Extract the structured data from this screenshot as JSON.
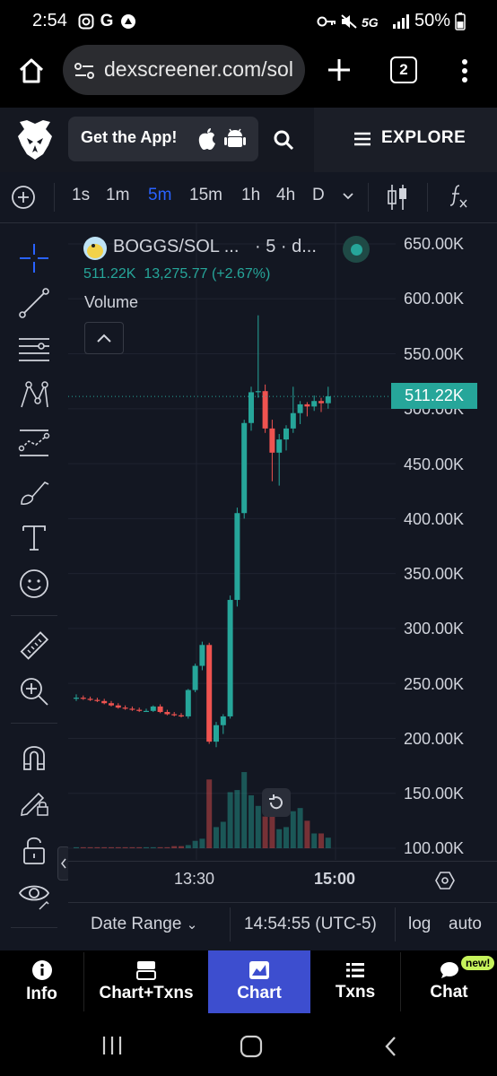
{
  "status_bar": {
    "time": "2:54",
    "battery": "50%",
    "network": "5G"
  },
  "browser": {
    "url": "dexscreener.com/sol",
    "tab_count": "2"
  },
  "site_header": {
    "get_app_label": "Get the App!",
    "explore_label": "EXPLORE"
  },
  "toolbar": {
    "timeframes": [
      "1s",
      "1m",
      "5m",
      "15m",
      "1h",
      "4h",
      "D"
    ],
    "active_timeframe": "5m"
  },
  "legend": {
    "pair": "BOGGS/SOL ...",
    "interval": "· 5 · d...",
    "price": "511.22K",
    "change": "13,275.77 (+2.67%)",
    "volume_label": "Volume"
  },
  "chart_data": {
    "type": "candlestick",
    "y_ticks": [
      "650.00K",
      "600.00K",
      "550.00K",
      "500.00K",
      "450.00K",
      "400.00K",
      "350.00K",
      "300.00K",
      "250.00K",
      "200.00K",
      "150.00K",
      "100.00K"
    ],
    "ylim": [
      100000,
      650000
    ],
    "x_ticks": [
      "13:30",
      "15:00"
    ],
    "last_price_label": "511.22K",
    "colors": {
      "up": "#26a69a",
      "down": "#ef5350"
    },
    "candles": [
      {
        "o": 237000,
        "h": 240000,
        "l": 234000,
        "c": 237000
      },
      {
        "o": 237000,
        "h": 239000,
        "l": 235000,
        "c": 236000
      },
      {
        "o": 236000,
        "h": 238000,
        "l": 234000,
        "c": 235000
      },
      {
        "o": 235000,
        "h": 237000,
        "l": 233000,
        "c": 234000
      },
      {
        "o": 234000,
        "h": 236000,
        "l": 231000,
        "c": 232000
      },
      {
        "o": 232000,
        "h": 234000,
        "l": 229000,
        "c": 230000
      },
      {
        "o": 230000,
        "h": 232000,
        "l": 227000,
        "c": 228000
      },
      {
        "o": 228000,
        "h": 230000,
        "l": 226000,
        "c": 227000
      },
      {
        "o": 227000,
        "h": 229000,
        "l": 225000,
        "c": 226000
      },
      {
        "o": 226000,
        "h": 228000,
        "l": 224000,
        "c": 225000
      },
      {
        "o": 225000,
        "h": 227000,
        "l": 224000,
        "c": 225000
      },
      {
        "o": 225000,
        "h": 230000,
        "l": 224000,
        "c": 229000
      },
      {
        "o": 229000,
        "h": 231000,
        "l": 223000,
        "c": 224000
      },
      {
        "o": 224000,
        "h": 226000,
        "l": 221000,
        "c": 222000
      },
      {
        "o": 222000,
        "h": 224000,
        "l": 220000,
        "c": 221000
      },
      {
        "o": 221000,
        "h": 223000,
        "l": 219000,
        "c": 220000
      },
      {
        "o": 220000,
        "h": 245000,
        "l": 218000,
        "c": 244000
      },
      {
        "o": 244000,
        "h": 268000,
        "l": 242000,
        "c": 266000
      },
      {
        "o": 266000,
        "h": 288000,
        "l": 262000,
        "c": 285000
      },
      {
        "o": 285000,
        "h": 287000,
        "l": 195000,
        "c": 197000
      },
      {
        "o": 197000,
        "h": 215000,
        "l": 192000,
        "c": 212000
      },
      {
        "o": 212000,
        "h": 222000,
        "l": 204000,
        "c": 220000
      },
      {
        "o": 220000,
        "h": 330000,
        "l": 218000,
        "c": 326000
      },
      {
        "o": 326000,
        "h": 410000,
        "l": 320000,
        "c": 405000
      },
      {
        "o": 405000,
        "h": 490000,
        "l": 400000,
        "c": 487000
      },
      {
        "o": 487000,
        "h": 520000,
        "l": 480000,
        "c": 515000
      },
      {
        "o": 515000,
        "h": 585000,
        "l": 510000,
        "c": 516000
      },
      {
        "o": 516000,
        "h": 522000,
        "l": 478000,
        "c": 482000
      },
      {
        "o": 482000,
        "h": 490000,
        "l": 434000,
        "c": 460000
      },
      {
        "o": 460000,
        "h": 477000,
        "l": 430000,
        "c": 472000
      },
      {
        "o": 472000,
        "h": 485000,
        "l": 462000,
        "c": 482000
      },
      {
        "o": 482000,
        "h": 520000,
        "l": 478000,
        "c": 496000
      },
      {
        "o": 496000,
        "h": 507000,
        "l": 486000,
        "c": 504000
      },
      {
        "o": 504000,
        "h": 506000,
        "l": 493000,
        "c": 502000
      },
      {
        "o": 502000,
        "h": 512000,
        "l": 498000,
        "c": 507000
      },
      {
        "o": 507000,
        "h": 510000,
        "l": 497000,
        "c": 505000
      },
      {
        "o": 505000,
        "h": 520000,
        "l": 500000,
        "c": 511220
      }
    ],
    "volume_relative": [
      0.01,
      0.01,
      0.01,
      0.01,
      0.01,
      0.01,
      0.01,
      0.01,
      0.01,
      0.01,
      0.01,
      0.01,
      0.01,
      0.01,
      0.02,
      0.02,
      0.03,
      0.07,
      0.09,
      0.65,
      0.2,
      0.25,
      0.53,
      0.55,
      0.72,
      0.5,
      0.4,
      0.3,
      0.55,
      0.18,
      0.2,
      0.35,
      0.38,
      0.26,
      0.14,
      0.14,
      0.1
    ]
  },
  "chart_bottom": {
    "date_range_label": "Date Range",
    "time": "14:54:55 (UTC-5)",
    "log_label": "log",
    "auto_label": "auto"
  },
  "bottom_nav": {
    "items": [
      {
        "label": "Info"
      },
      {
        "label": "Chart+Txns"
      },
      {
        "label": "Chart"
      },
      {
        "label": "Txns"
      },
      {
        "label": "Chat"
      }
    ],
    "new_badge": "new!"
  }
}
